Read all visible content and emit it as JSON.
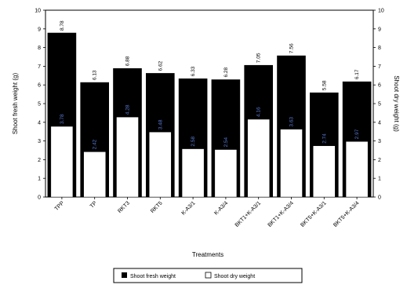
{
  "chart_data": {
    "type": "bar",
    "categories": [
      "TPP",
      "TP",
      "RKT3",
      "RKT5",
      "K-A3/1",
      "K-A3/4",
      "BKT1+K-A3/1",
      "BKT1+K-A3/4",
      "BKT5+K-A3/1",
      "BKT5+K-A3/4"
    ],
    "series": [
      {
        "name": "Shoot fresh weight",
        "values": [
          8.78,
          6.13,
          6.88,
          6.62,
          6.33,
          6.28,
          7.05,
          7.56,
          5.58,
          6.17
        ],
        "labels": [
          "8.78",
          "6.13",
          "6.88",
          "6.62",
          "6.33",
          "6.28",
          "7.05",
          "7.56",
          "5.58",
          "6.17"
        ],
        "color": "#000000"
      },
      {
        "name": "Shoot dry weight",
        "values": [
          3.78,
          2.42,
          4.28,
          3.48,
          2.58,
          2.54,
          4.16,
          3.63,
          2.74,
          2.97
        ],
        "labels": [
          "3.78",
          "2.42",
          "4.28",
          "3.48",
          "2.58",
          "2.54",
          "4.16",
          "3.63",
          "2.74",
          "2.97"
        ],
        "color": "#ffffff"
      }
    ],
    "xlabel": "Treatments",
    "ylabel": "Shoot fresh weight (g)",
    "ylabel_right": "Shoot dry weight (g)",
    "ylim": [
      0,
      10
    ],
    "yticks": [
      0,
      1,
      2,
      3,
      4,
      5,
      6,
      7,
      8,
      9,
      10
    ],
    "grid": false,
    "legend_position": "bottom"
  }
}
